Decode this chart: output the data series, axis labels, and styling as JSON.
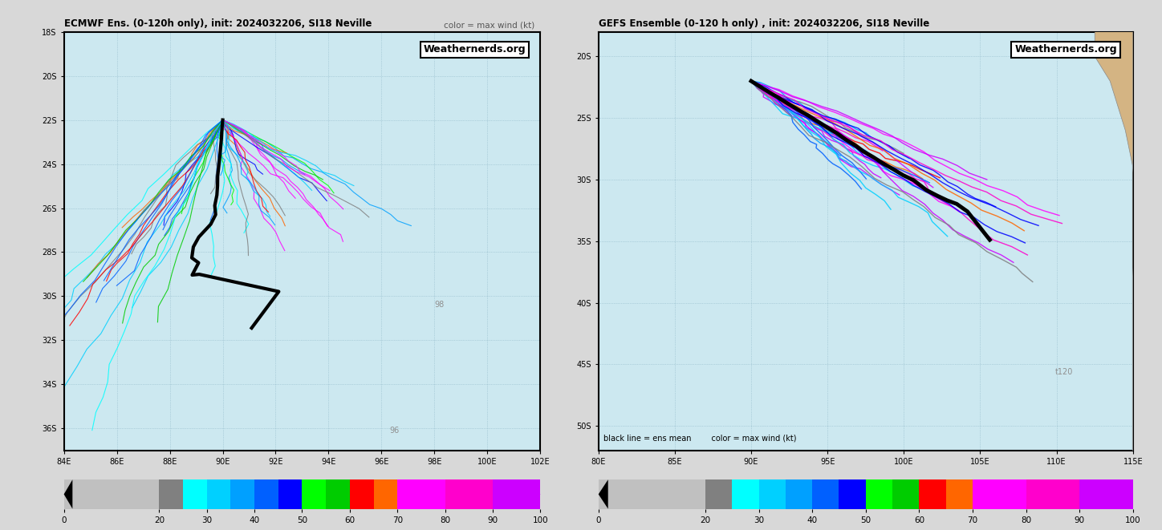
{
  "title_left": "ECMWF Ens. (0-120h only), init: 2024032206, SI18 Neville",
  "title_right": "GEFS Ensemble (0-120 h only) , init: 2024032206, SI18 Neville",
  "color_label_left": "color = max wind (kt)",
  "color_label_right": "black line = ens mean        color = max wind (kt)",
  "watermark": "Weathernerds.org",
  "bg_color": "#cce8f0",
  "land_color": "#d4b483",
  "grid_color": "#90b8c8",
  "text_color": "#909090",
  "left_panel": {
    "xlim": [
      84,
      102
    ],
    "ylim": [
      -37,
      -18
    ],
    "xticks": [
      84,
      86,
      88,
      90,
      92,
      94,
      96,
      98,
      100,
      102
    ],
    "yticks": [
      -36,
      -34,
      -32,
      -30,
      -28,
      -26,
      -24,
      -22,
      -20,
      -18
    ],
    "xlabel_labels": [
      "84E",
      "86E",
      "88E",
      "90E",
      "92E",
      "94E",
      "96E",
      "98E",
      "100E",
      "102E"
    ],
    "ylabel_labels": [
      "36S",
      "34S",
      "32S",
      "30S",
      "28S",
      "26S",
      "24S",
      "22S",
      "20S",
      "18S"
    ],
    "label_98": [
      98.2,
      -30.5
    ],
    "label_96": [
      96.5,
      -36.2
    ]
  },
  "right_panel": {
    "xlim": [
      80,
      115
    ],
    "ylim": [
      -52,
      -18
    ],
    "xticks": [
      80,
      85,
      90,
      95,
      100,
      105,
      110,
      115
    ],
    "yticks": [
      -50,
      -45,
      -40,
      -35,
      -30,
      -25,
      -20
    ],
    "xlabel_labels": [
      "80E",
      "85E",
      "90E",
      "95E",
      "100E",
      "105E",
      "110E",
      "115E"
    ],
    "ylabel_labels": [
      "50S",
      "45S",
      "40S",
      "35S",
      "30S",
      "25S",
      "20S"
    ],
    "label_t120": [
      110.5,
      -45.8
    ]
  },
  "colorbar": {
    "bounds": [
      0,
      20,
      25,
      30,
      35,
      40,
      45,
      50,
      55,
      60,
      65,
      70,
      80,
      90,
      100
    ],
    "colors": [
      "#c0c0c0",
      "#808080",
      "#00ffff",
      "#00d0ff",
      "#00a0ff",
      "#0060ff",
      "#0000ff",
      "#00ff00",
      "#00cc00",
      "#ff0000",
      "#ff6600",
      "#ff00ff",
      "#ff00cc",
      "#cc00ff"
    ],
    "ticks": [
      0,
      20,
      30,
      40,
      50,
      60,
      70,
      80,
      90,
      100
    ],
    "tick_labels": [
      "0",
      "20",
      "30",
      "40",
      "50",
      "60",
      "70",
      "80",
      "90",
      "100"
    ]
  }
}
